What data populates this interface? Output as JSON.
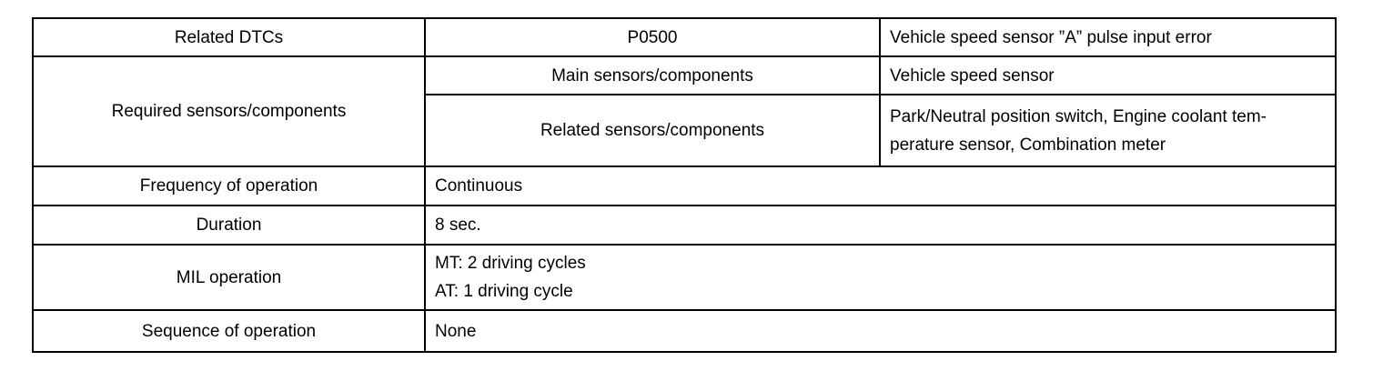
{
  "rows": {
    "dtc": {
      "label": "Related DTCs",
      "code": "P0500",
      "description": "Vehicle speed sensor ”A” pulse input error"
    },
    "sensors": {
      "label": "Required sensors/components",
      "main_label": "Main sensors/components",
      "main_value": "Vehicle speed sensor",
      "related_label": "Related sensors/components",
      "related_value_lines": [
        "Park/Neutral position switch, Engine coolant tem-",
        "perature sensor, Combination meter"
      ]
    },
    "frequency": {
      "label": "Frequency of operation",
      "value": "Continuous"
    },
    "duration": {
      "label": "Duration",
      "value": "8 sec."
    },
    "mil": {
      "label": "MIL operation",
      "value_lines": [
        "MT: 2 driving cycles",
        "AT: 1 driving cycle"
      ]
    },
    "sequence": {
      "label": "Sequence of operation",
      "value": "None"
    }
  }
}
